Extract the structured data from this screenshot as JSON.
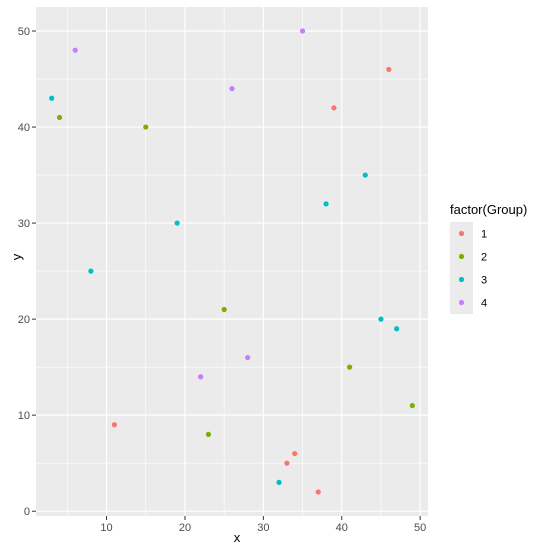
{
  "chart_data": {
    "type": "scatter",
    "xlabel": "x",
    "ylabel": "y",
    "xlim": [
      1,
      51
    ],
    "ylim": [
      -0.5,
      52.5
    ],
    "x_ticks": [
      10,
      20,
      30,
      40,
      50
    ],
    "y_ticks": [
      0,
      10,
      20,
      30,
      40,
      50
    ],
    "grid": true,
    "legend": {
      "title": "factor(Group)",
      "placement": "right",
      "entries": [
        "1",
        "2",
        "3",
        "4"
      ]
    },
    "colors": {
      "1": "#F8766D",
      "2": "#7CAE00",
      "3": "#00BFC4",
      "4": "#C77CFF",
      "panel": "#EBEBEB",
      "grid": "#FFFFFF"
    },
    "series": [
      {
        "name": "1",
        "points": [
          [
            46,
            46
          ],
          [
            39,
            42
          ],
          [
            11,
            9
          ],
          [
            34,
            6
          ],
          [
            33,
            5
          ],
          [
            37,
            2
          ]
        ]
      },
      {
        "name": "2",
        "points": [
          [
            4,
            41
          ],
          [
            15,
            40
          ],
          [
            25,
            21
          ],
          [
            41,
            15
          ],
          [
            49,
            11
          ],
          [
            23,
            8
          ]
        ]
      },
      {
        "name": "3",
        "points": [
          [
            3,
            43
          ],
          [
            43,
            35
          ],
          [
            38,
            32
          ],
          [
            19,
            30
          ],
          [
            8,
            25
          ],
          [
            45,
            20
          ],
          [
            47,
            19
          ],
          [
            32,
            3
          ]
        ]
      },
      {
        "name": "4",
        "points": [
          [
            35,
            50
          ],
          [
            6,
            48
          ],
          [
            26,
            44
          ],
          [
            28,
            16
          ],
          [
            22,
            14
          ]
        ]
      }
    ]
  }
}
